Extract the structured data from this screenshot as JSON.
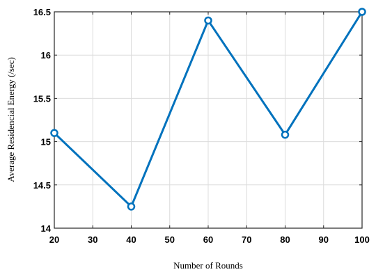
{
  "chart_data": {
    "type": "line",
    "title": "",
    "xlabel": "Number of Rounds",
    "ylabel": "Average Residencial Energy (/sec)",
    "xlim": [
      20,
      100
    ],
    "ylim": [
      14,
      16.5
    ],
    "grid": true,
    "x_ticks": [
      "20",
      "30",
      "40",
      "50",
      "60",
      "70",
      "80",
      "90",
      "100"
    ],
    "y_ticks": [
      "14",
      "14.5",
      "15",
      "15.5",
      "16",
      "16.5"
    ],
    "series": [
      {
        "color": "#0072BD",
        "marker": "circle",
        "x": [
          20,
          40,
          60,
          80,
          100
        ],
        "y": [
          15.1,
          14.25,
          16.4,
          15.08,
          16.5
        ]
      }
    ]
  }
}
